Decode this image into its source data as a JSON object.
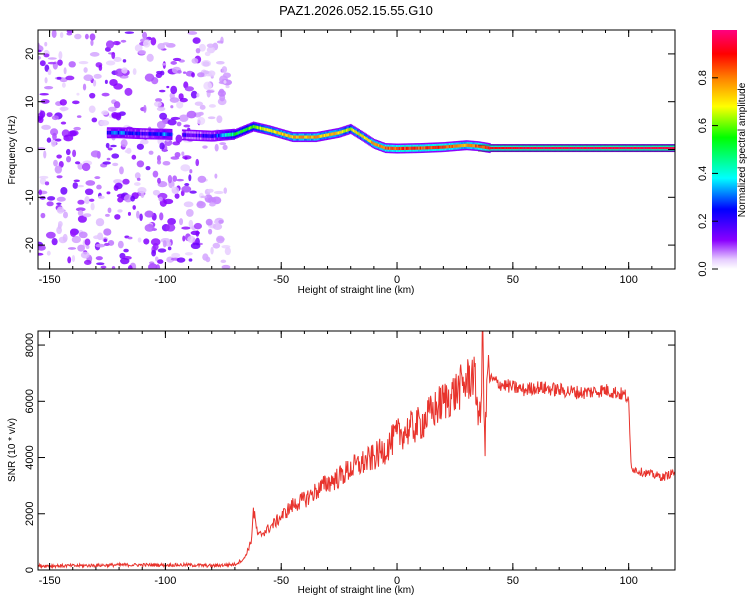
{
  "title": "PAZ1.2026.052.15.55.G10",
  "chart_data": [
    {
      "type": "heatmap",
      "name": "spectrogram",
      "xlabel": "Height of straight line (km)",
      "ylabel": "Frequency (Hz)",
      "xlim": [
        -155,
        120
      ],
      "ylim": [
        -25,
        25
      ],
      "xticks": [
        -150,
        -100,
        -50,
        0,
        50,
        100
      ],
      "yticks": [
        -20,
        -10,
        0,
        10,
        20
      ],
      "colorbar": {
        "label": "Normalized spectral amplitude",
        "ticks": [
          0.0,
          0.2,
          0.4,
          0.6,
          0.8
        ],
        "tick_labels": [
          "0.0",
          "0.2",
          "0.4",
          "0.6",
          "0.8"
        ],
        "range": [
          0,
          1
        ],
        "colors": [
          "#ffffff",
          "#8a00ff",
          "#0000ff",
          "#00ffff",
          "#00ff00",
          "#ffff00",
          "#ff8000",
          "#ff0000",
          "#ff0080"
        ]
      },
      "ridge": {
        "height_km": [
          -125,
          -120,
          -110,
          -100,
          -90,
          -80,
          -70,
          -62,
          -55,
          -45,
          -35,
          -25,
          -20,
          -15,
          -10,
          -5,
          0,
          10,
          20,
          30,
          35,
          40,
          60,
          80,
          100,
          120
        ],
        "frequency_hz": [
          3.5,
          3.5,
          3.3,
          3.2,
          3.0,
          2.8,
          3.2,
          4.8,
          4.0,
          2.6,
          2.6,
          3.5,
          4.3,
          2.8,
          1.2,
          0.3,
          0.2,
          0.3,
          0.5,
          0.9,
          0.7,
          0.3,
          0.3,
          0.3,
          0.3,
          0.3
        ],
        "amplitude": [
          0.25,
          0.3,
          0.2,
          0.3,
          0.15,
          0.2,
          0.5,
          0.6,
          0.7,
          0.75,
          0.75,
          0.7,
          0.65,
          0.7,
          0.75,
          0.8,
          0.85,
          0.85,
          0.85,
          0.75,
          0.85,
          0.9,
          0.95,
          0.95,
          0.95,
          0.95
        ]
      },
      "noise_region_km": [
        -155,
        -75
      ]
    },
    {
      "type": "line",
      "name": "snr",
      "xlabel": "Height of straight line (km)",
      "ylabel": "SNR (10 * v/v)",
      "xlim": [
        -155,
        120
      ],
      "ylim": [
        0,
        8500
      ],
      "xticks": [
        -150,
        -100,
        -50,
        0,
        50,
        100
      ],
      "yticks": [
        0,
        2000,
        4000,
        6000,
        8000
      ],
      "color": "#e8332c",
      "series": [
        {
          "name": "SNR",
          "x": [
            -155,
            -140,
            -120,
            -100,
            -90,
            -80,
            -70,
            -66,
            -63,
            -62,
            -60,
            -55,
            -50,
            -45,
            -40,
            -35,
            -30,
            -25,
            -20,
            -15,
            -10,
            -5,
            0,
            5,
            10,
            15,
            20,
            25,
            30,
            33,
            36,
            37,
            38,
            39,
            40,
            45,
            50,
            55,
            60,
            70,
            80,
            90,
            95,
            99,
            100,
            101,
            102,
            105,
            110,
            115,
            120
          ],
          "y": [
            150,
            150,
            180,
            180,
            180,
            150,
            200,
            400,
            1000,
            2100,
            1200,
            1500,
            1900,
            2300,
            2500,
            2800,
            3100,
            3300,
            3600,
            3800,
            4000,
            4300,
            4800,
            5000,
            5200,
            5600,
            6000,
            6300,
            6700,
            7000,
            5200,
            8400,
            4300,
            7200,
            6800,
            6600,
            6500,
            6400,
            6500,
            6400,
            6300,
            6400,
            6300,
            6200,
            5900,
            3800,
            3600,
            3500,
            3400,
            3300,
            3500
          ]
        }
      ]
    }
  ]
}
